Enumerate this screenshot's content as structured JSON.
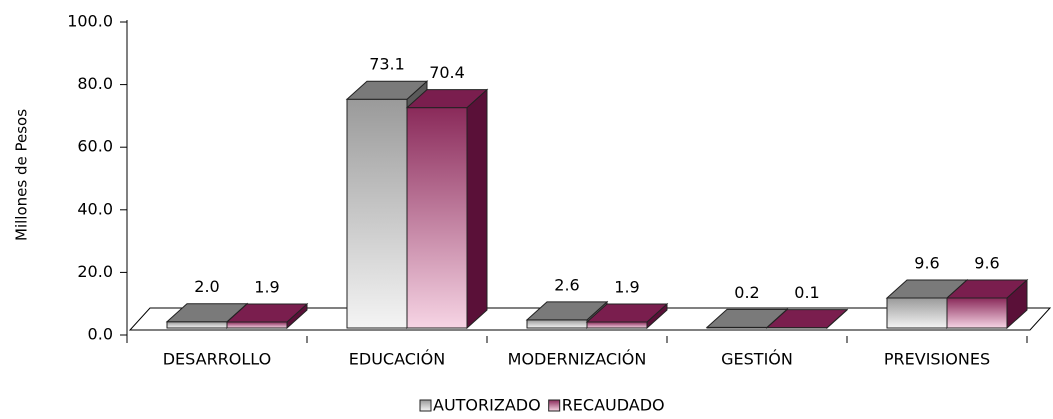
{
  "chart_data": {
    "type": "bar3d",
    "y_axis_label": "Millones de Pesos",
    "categories": [
      "DESARROLLO",
      "EDUCACIÓN",
      "MODERNIZACIÓN",
      "GESTIÓN",
      "PREVISIONES"
    ],
    "series": [
      {
        "name": "AUTORIZADO",
        "color": "#808080",
        "values": [
          2.0,
          73.1,
          2.6,
          0.2,
          9.6
        ],
        "value_labels": [
          "2.0",
          "73.1",
          "2.6",
          "0.2",
          "9.6"
        ]
      },
      {
        "name": "RECAUDADO",
        "color": "#7a1e4e",
        "values": [
          1.9,
          70.4,
          1.9,
          0.1,
          9.6
        ],
        "value_labels": [
          "1.9",
          "70.4",
          "1.9",
          "0.1",
          "9.6"
        ]
      }
    ],
    "ylim": [
      0,
      100
    ],
    "yticks": [
      {
        "value": 0,
        "label": "0.0"
      },
      {
        "value": 20,
        "label": "20.0"
      },
      {
        "value": 40,
        "label": "40.0"
      },
      {
        "value": 60,
        "label": "60.0"
      },
      {
        "value": 80,
        "label": "80.0"
      },
      {
        "value": 100,
        "label": "100.0"
      }
    ],
    "legend": "bottom"
  }
}
